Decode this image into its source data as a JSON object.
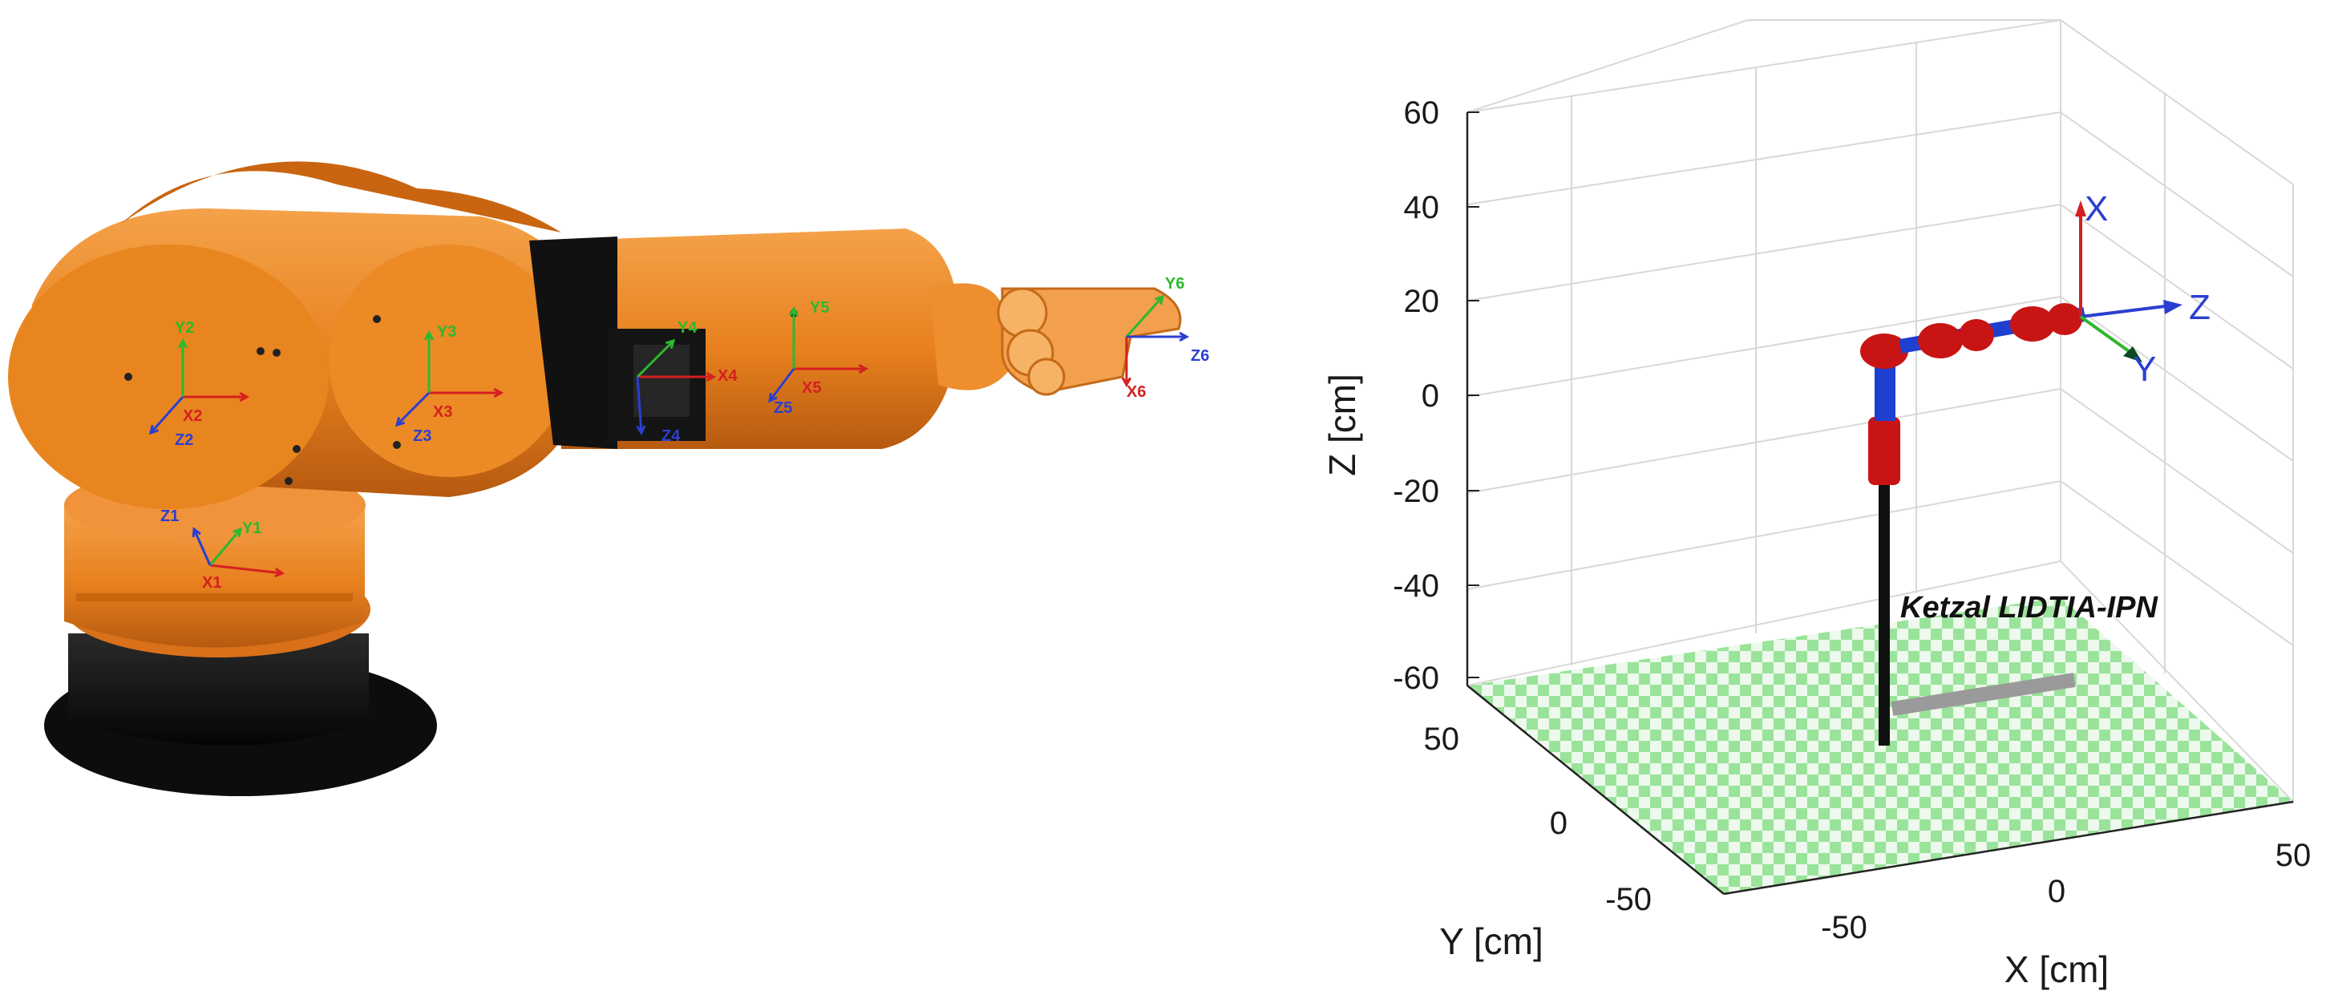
{
  "left_panel": {
    "frames": [
      {
        "x": "X1",
        "y": "Y1",
        "z": "Z1"
      },
      {
        "x": "X2",
        "y": "Y2",
        "z": "Z2"
      },
      {
        "x": "X3",
        "y": "Y3",
        "z": "Z3"
      },
      {
        "x": "X4",
        "y": "Y4",
        "z": "Z4"
      },
      {
        "x": "X5",
        "y": "Y5",
        "z": "Z5"
      },
      {
        "x": "X6",
        "y": "Y6",
        "z": "Z6"
      }
    ],
    "colors": {
      "x_axis": "#d42020",
      "y_axis": "#2db82d",
      "z_axis": "#2a3fd0",
      "body": "#e8801e",
      "dark": "#111111"
    }
  },
  "plot": {
    "z_label": "Z [cm]",
    "x_label": "X [cm]",
    "y_label": "Y [cm]",
    "z_ticks": [
      "60",
      "40",
      "20",
      "0",
      "-20",
      "-40",
      "-60"
    ],
    "y_ticks": [
      "50",
      "0",
      "-50"
    ],
    "x_ticks": [
      "-50",
      "0",
      "50"
    ],
    "robot_name": "Ketzal LIDTIA-IPN",
    "ee_axes": {
      "x": "X",
      "y": "Y",
      "z": "Z"
    },
    "colors": {
      "floor": "#8fe08f",
      "link_red": "#c81414",
      "link_blue": "#1f3fd0",
      "pillar": "#111111"
    }
  }
}
